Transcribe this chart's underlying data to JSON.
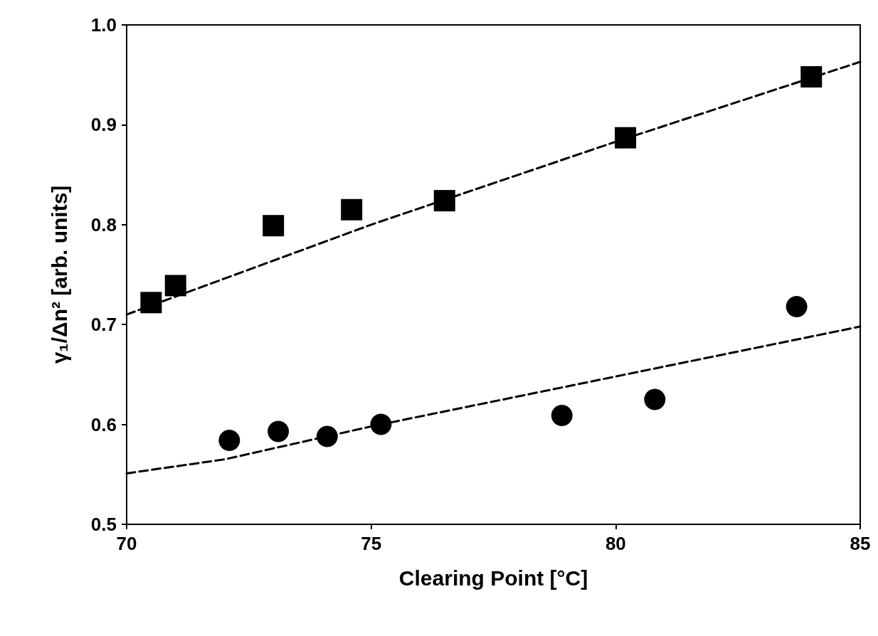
{
  "chart_data": {
    "type": "scatter",
    "xlabel": "Clearing Point [°C]",
    "ylabel": "γ₁/Δn² [arb. units]",
    "xlim": [
      70,
      85
    ],
    "xticks": [
      70,
      75,
      80,
      85
    ],
    "ylim": [
      0.5,
      1.0
    ],
    "yticks": [
      0.5,
      0.6,
      0.7,
      0.8,
      0.9,
      {
        "value": 1.0,
        "label": "1.0"
      }
    ],
    "grid": false,
    "series": [
      {
        "marker": "square",
        "color": "#000000",
        "x": [
          70.5,
          71.0,
          73.0,
          74.6,
          76.5,
          80.2,
          84.0
        ],
        "values": [
          0.722,
          0.739,
          0.799,
          0.815,
          0.824,
          0.887,
          0.948
        ]
      },
      {
        "marker": "circle",
        "color": "#000000",
        "x": [
          72.1,
          73.1,
          74.1,
          75.2,
          78.9,
          80.8,
          83.7
        ],
        "values": [
          0.584,
          0.593,
          0.588,
          0.6,
          0.609,
          0.625,
          0.718
        ]
      },
      {
        "type": "line",
        "marker": "none",
        "line_style": "dashed",
        "color": "#000000",
        "x": [
          70,
          75,
          80,
          85
        ],
        "values": [
          0.71,
          0.8,
          0.883,
          0.963
        ]
      },
      {
        "type": "line",
        "marker": "none",
        "line_style": "dashed",
        "color": "#000000",
        "x": [
          70,
          72,
          75,
          80,
          85
        ],
        "values": [
          0.551,
          0.565,
          0.598,
          0.648,
          0.698
        ]
      }
    ]
  }
}
